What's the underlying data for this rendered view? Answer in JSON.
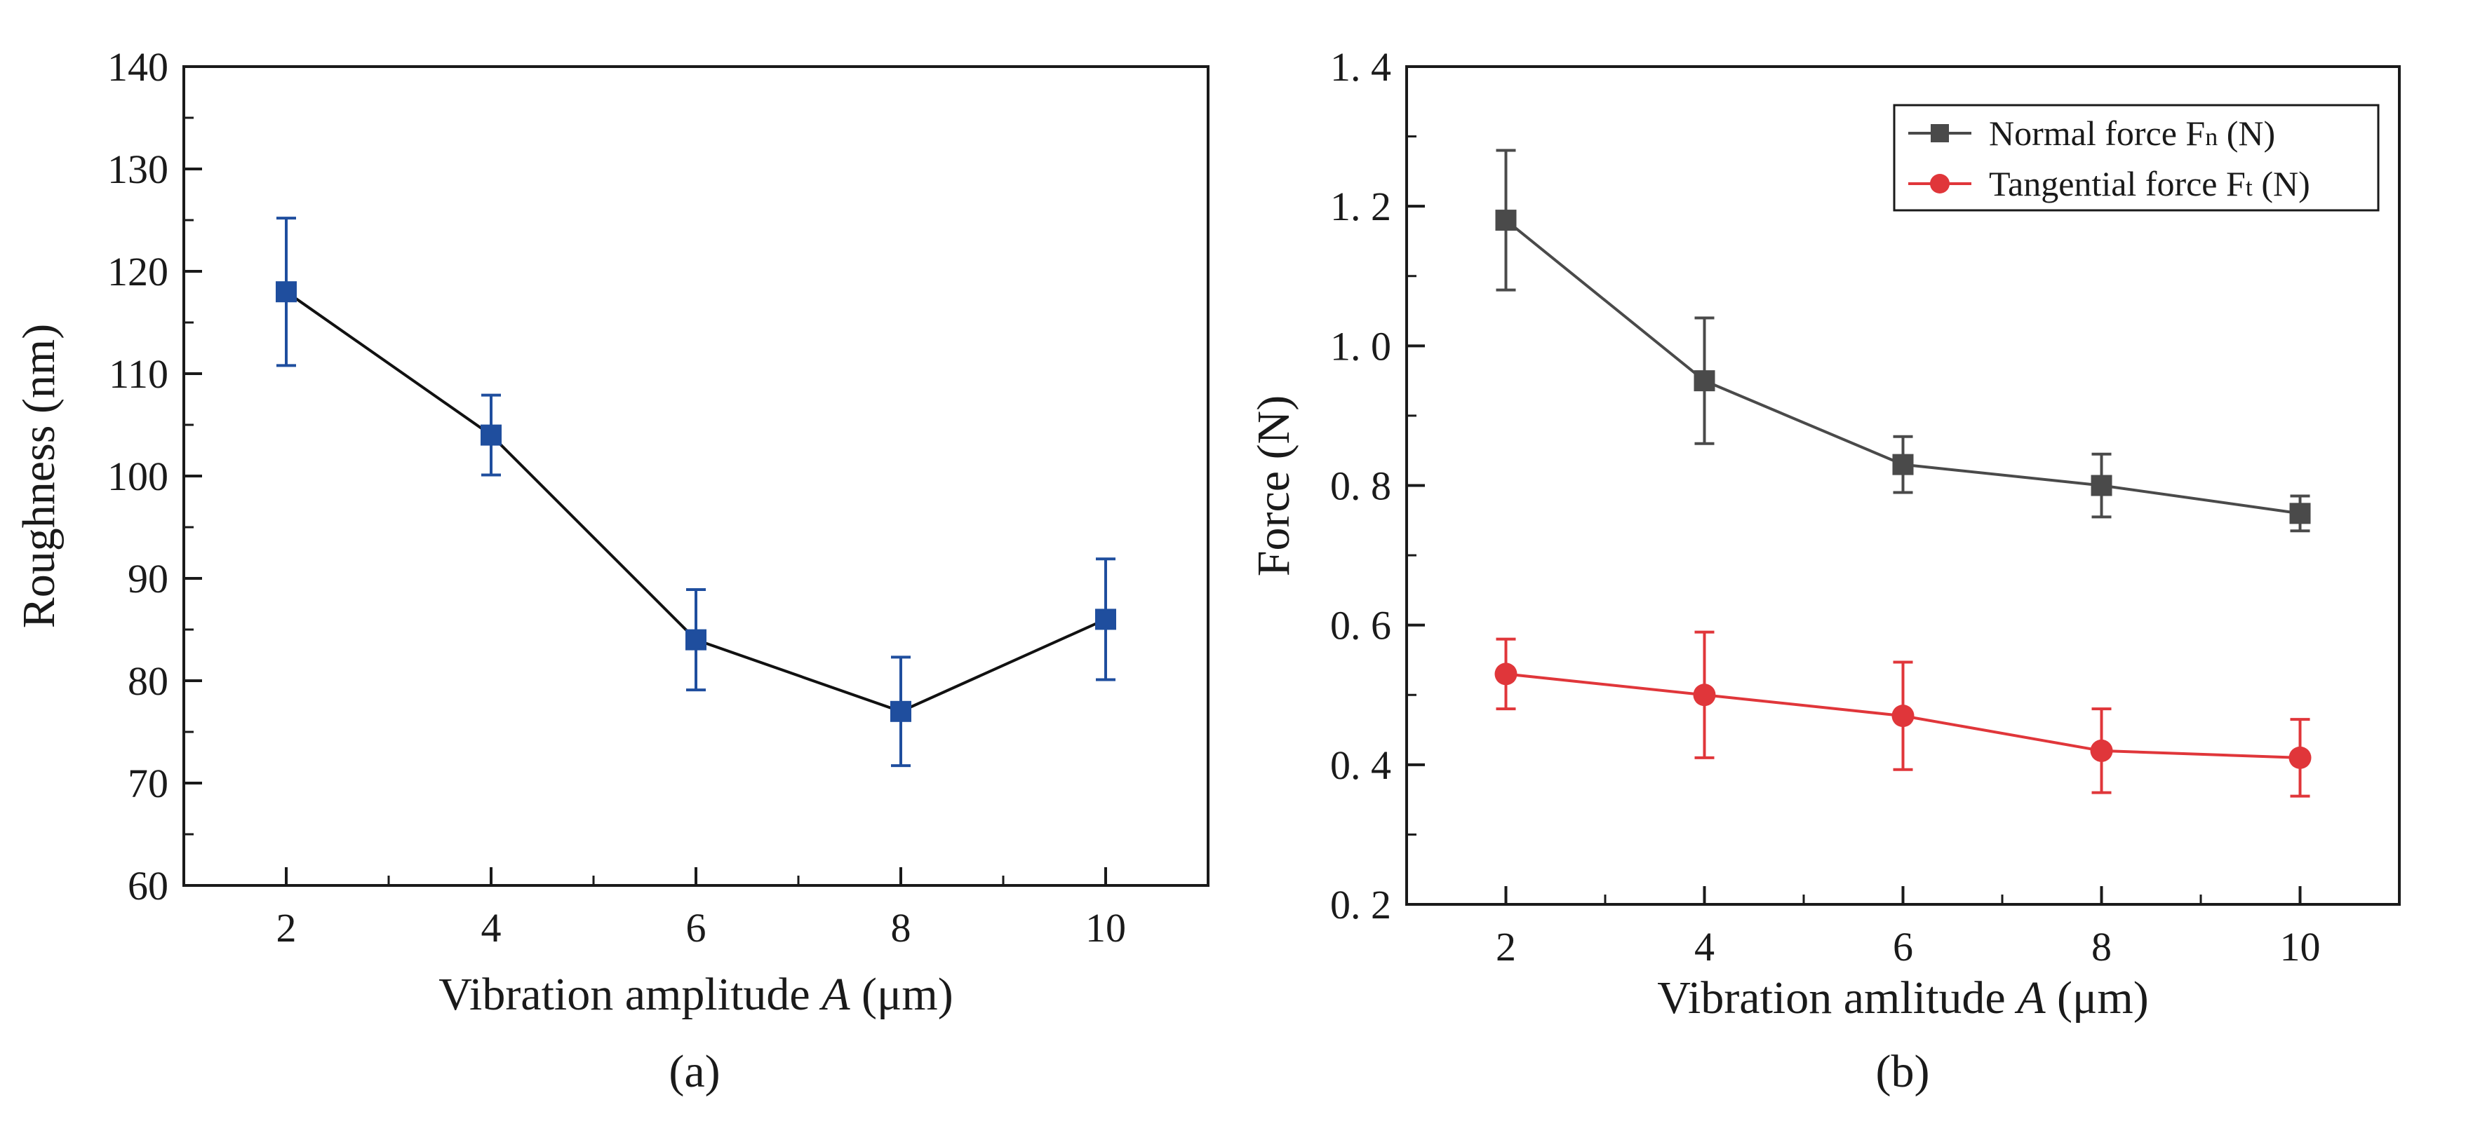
{
  "chart_data": [
    {
      "type": "line",
      "panel": "a",
      "caption": "(a)",
      "xlabel": "Vibration amplitude",
      "xlabel_var": "A",
      "xlabel_unit": "(μm)",
      "ylabel": "Roughness (nm)",
      "xlim": [
        1,
        11
      ],
      "ylim": [
        60,
        140
      ],
      "x_ticks": [
        2,
        4,
        6,
        8,
        10
      ],
      "x_tick_labels": [
        "2",
        "4",
        "6",
        "8",
        "10"
      ],
      "y_ticks": [
        60,
        70,
        80,
        90,
        100,
        110,
        120,
        130,
        140
      ],
      "y_tick_labels": [
        "60",
        "70",
        "80",
        "90",
        "100",
        "110",
        "120",
        "130",
        "140"
      ],
      "grid": false,
      "series": [
        {
          "name": "Roughness",
          "color": "#1f4e9e",
          "marker": "square",
          "x": [
            2,
            4,
            6,
            8,
            10
          ],
          "values": [
            118,
            104,
            84,
            77,
            86
          ],
          "errors": [
            7.2,
            3.9,
            4.9,
            5.3,
            5.9
          ]
        }
      ]
    },
    {
      "type": "line",
      "panel": "b",
      "caption": "(b)",
      "xlabel": "Vibration amlitude",
      "xlabel_var": "A",
      "xlabel_unit": "(μm)",
      "ylabel": "Force (N)",
      "xlim": [
        1,
        11
      ],
      "ylim": [
        0.2,
        1.4
      ],
      "x_ticks": [
        2,
        4,
        6,
        8,
        10
      ],
      "x_tick_labels": [
        "2",
        "4",
        "6",
        "8",
        "10"
      ],
      "y_ticks": [
        0.2,
        0.4,
        0.6,
        0.8,
        1.0,
        1.2,
        1.4
      ],
      "y_tick_labels": [
        "0. 2",
        "0. 4",
        "0. 6",
        "0. 8",
        "1. 0",
        "1. 2",
        "1. 4"
      ],
      "grid": false,
      "legend_position": "top-right",
      "series": [
        {
          "name": "Normal force Fn (N)",
          "legend_main": "Normal force F",
          "legend_sub": "n",
          "legend_tail": " (N)",
          "color": "#4a4a4a",
          "marker": "square",
          "x": [
            2,
            4,
            6,
            8,
            10
          ],
          "values": [
            1.18,
            0.95,
            0.83,
            0.8,
            0.76
          ],
          "errors": [
            0.1,
            0.09,
            0.04,
            0.045,
            0.025
          ]
        },
        {
          "name": "Tangential force Ft (N)",
          "legend_main": "Tangential force F",
          "legend_sub": "t",
          "legend_tail": " (N)",
          "color": "#e0363a",
          "marker": "circle",
          "x": [
            2,
            4,
            6,
            8,
            10
          ],
          "values": [
            0.53,
            0.5,
            0.47,
            0.42,
            0.41
          ],
          "errors": [
            0.05,
            0.09,
            0.077,
            0.06,
            0.055
          ]
        }
      ]
    }
  ]
}
